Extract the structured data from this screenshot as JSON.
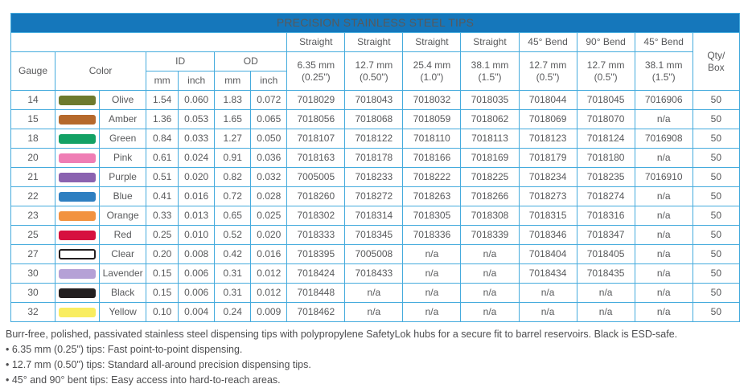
{
  "theme": {
    "title_bar_blue": "#1577bb",
    "border_blue": "#45abdd",
    "text_gray": "#58595b",
    "title_text": "#ffffff"
  },
  "table": {
    "title": "PRECISION STAINLESS STEEL TIPS",
    "left_headers": {
      "gauge": "Gauge",
      "color": "Color",
      "id": "ID",
      "od": "OD",
      "id_mm": "mm",
      "id_inch": "inch",
      "od_mm": "mm",
      "od_inch": "inch"
    },
    "qty_header": "Qty/\nBox",
    "tip_columns": [
      {
        "type": "Straight",
        "size": "6.35 mm\n(0.25\")"
      },
      {
        "type": "Straight",
        "size": "12.7 mm\n(0.50\")"
      },
      {
        "type": "Straight",
        "size": "25.4 mm\n(1.0\")"
      },
      {
        "type": "Straight",
        "size": "38.1 mm\n(1.5\")"
      },
      {
        "type": "45° Bend",
        "size": "12.7 mm\n(0.5\")"
      },
      {
        "type": "90° Bend",
        "size": "12.7 mm\n(0.5\")"
      },
      {
        "type": "45° Bend",
        "size": "38.1 mm\n(1.5\")"
      }
    ],
    "rows": [
      {
        "gauge": "14",
        "color_name": "Olive",
        "swatch": "#6d7a2e",
        "outlined": false,
        "id_mm": "1.54",
        "id_inch": "0.060",
        "od_mm": "1.83",
        "od_inch": "0.072",
        "parts": [
          "7018029",
          "7018043",
          "7018032",
          "7018035",
          "7018044",
          "7018045",
          "7016906"
        ],
        "qty": "50"
      },
      {
        "gauge": "15",
        "color_name": "Amber",
        "swatch": "#b5692c",
        "outlined": false,
        "id_mm": "1.36",
        "id_inch": "0.053",
        "od_mm": "1.65",
        "od_inch": "0.065",
        "parts": [
          "7018056",
          "7018068",
          "7018059",
          "7018062",
          "7018069",
          "7018070",
          "n/a"
        ],
        "qty": "50"
      },
      {
        "gauge": "18",
        "color_name": "Green",
        "swatch": "#12a165",
        "outlined": false,
        "id_mm": "0.84",
        "id_inch": "0.033",
        "od_mm": "1.27",
        "od_inch": "0.050",
        "parts": [
          "7018107",
          "7018122",
          "7018110",
          "7018113",
          "7018123",
          "7018124",
          "7016908"
        ],
        "qty": "50"
      },
      {
        "gauge": "20",
        "color_name": "Pink",
        "swatch": "#ef7eb5",
        "outlined": false,
        "id_mm": "0.61",
        "id_inch": "0.024",
        "od_mm": "0.91",
        "od_inch": "0.036",
        "parts": [
          "7018163",
          "7018178",
          "7018166",
          "7018169",
          "7018179",
          "7018180",
          "n/a"
        ],
        "qty": "50"
      },
      {
        "gauge": "21",
        "color_name": "Purple",
        "swatch": "#8a62b0",
        "outlined": false,
        "id_mm": "0.51",
        "id_inch": "0.020",
        "od_mm": "0.82",
        "od_inch": "0.032",
        "parts": [
          "7005005",
          "7018233",
          "7018222",
          "7018225",
          "7018234",
          "7018235",
          "7016910"
        ],
        "qty": "50"
      },
      {
        "gauge": "22",
        "color_name": "Blue",
        "swatch": "#2e7fc1",
        "outlined": false,
        "id_mm": "0.41",
        "id_inch": "0.016",
        "od_mm": "0.72",
        "od_inch": "0.028",
        "parts": [
          "7018260",
          "7018272",
          "7018263",
          "7018266",
          "7018273",
          "7018274",
          "n/a"
        ],
        "qty": "50"
      },
      {
        "gauge": "23",
        "color_name": "Orange",
        "swatch": "#f29340",
        "outlined": false,
        "id_mm": "0.33",
        "id_inch": "0.013",
        "od_mm": "0.65",
        "od_inch": "0.025",
        "parts": [
          "7018302",
          "7018314",
          "7018305",
          "7018308",
          "7018315",
          "7018316",
          "n/a"
        ],
        "qty": "50"
      },
      {
        "gauge": "25",
        "color_name": "Red",
        "swatch": "#d6103f",
        "outlined": false,
        "id_mm": "0.25",
        "id_inch": "0.010",
        "od_mm": "0.52",
        "od_inch": "0.020",
        "parts": [
          "7018333",
          "7018345",
          "7018336",
          "7018339",
          "7018346",
          "7018347",
          "n/a"
        ],
        "qty": "50"
      },
      {
        "gauge": "27",
        "color_name": "Clear",
        "swatch": "#ffffff",
        "outlined": true,
        "id_mm": "0.20",
        "id_inch": "0.008",
        "od_mm": "0.42",
        "od_inch": "0.016",
        "parts": [
          "7018395",
          "7005008",
          "n/a",
          "n/a",
          "7018404",
          "7018405",
          "n/a"
        ],
        "qty": "50"
      },
      {
        "gauge": "30",
        "color_name": "Lavender",
        "swatch": "#b5a1d6",
        "outlined": false,
        "id_mm": "0.15",
        "id_inch": "0.006",
        "od_mm": "0.31",
        "od_inch": "0.012",
        "parts": [
          "7018424",
          "7018433",
          "n/a",
          "n/a",
          "7018434",
          "7018435",
          "n/a"
        ],
        "qty": "50"
      },
      {
        "gauge": "30",
        "color_name": "Black",
        "swatch": "#231f20",
        "outlined": false,
        "id_mm": "0.15",
        "id_inch": "0.006",
        "od_mm": "0.31",
        "od_inch": "0.012",
        "parts": [
          "7018448",
          "n/a",
          "n/a",
          "n/a",
          "n/a",
          "n/a",
          "n/a"
        ],
        "qty": "50"
      },
      {
        "gauge": "32",
        "color_name": "Yellow",
        "swatch": "#f9ed60",
        "outlined": false,
        "id_mm": "0.10",
        "id_inch": "0.004",
        "od_mm": "0.24",
        "od_inch": "0.009",
        "parts": [
          "7018462",
          "n/a",
          "n/a",
          "n/a",
          "n/a",
          "n/a",
          "n/a"
        ],
        "qty": "50"
      }
    ]
  },
  "footer": {
    "description": "Burr-free, polished, passivated stainless steel dispensing tips with polypropylene SafetyLok hubs for a secure fit to barrel reservoirs. Black is ESD-safe.",
    "bullets": [
      "• 6.35 mm (0.25\") tips: Fast point-to-point dispensing.",
      "• 12.7 mm (0.50\") tips: Standard all-around precision dispensing tips.",
      "• 45° and 90° bent tips: Easy access into hard-to-reach areas."
    ]
  }
}
